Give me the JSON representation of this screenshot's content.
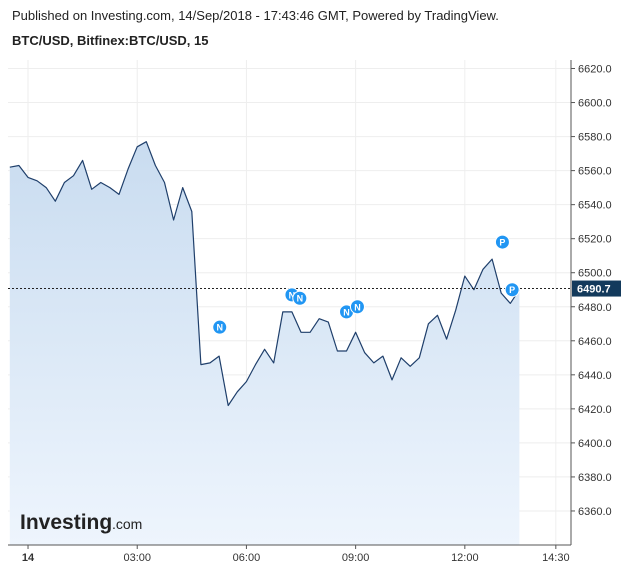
{
  "header": {
    "published": "Published on Investing.com, 14/Sep/2018 - 17:43:46 GMT, Powered by TradingView.",
    "symbol": "BTC/USD, Bitfinex:BTC/USD, 15"
  },
  "logo": {
    "main": "Investing",
    "suffix": ".com"
  },
  "colors": {
    "line": "#1f3f6b",
    "area_top": "#c9dcf0",
    "area_bottom": "#eef5fd",
    "current_badge": "#133a5c",
    "marker": "#2196f3",
    "grid": "#eeeeee"
  },
  "chart_data": {
    "type": "area",
    "title": "",
    "xlabel": "",
    "ylabel": "",
    "ylim": [
      6340,
      6625
    ],
    "y_ticks": [
      6360.0,
      6380.0,
      6400.0,
      6420.0,
      6440.0,
      6460.0,
      6480.0,
      6500.0,
      6520.0,
      6540.0,
      6560.0,
      6580.0,
      6600.0,
      6620.0
    ],
    "y_tick_labels": [
      "6360.0",
      "6380.0",
      "6400.0",
      "6420.0",
      "6440.0",
      "6460.0",
      "6480.0",
      "6500.0",
      "6520.0",
      "6540.0",
      "6560.0",
      "6580.0",
      "6600.0",
      "6620.0"
    ],
    "x_ticks": [
      {
        "t": 0,
        "label": "14"
      },
      {
        "t": 180,
        "label": "03:00"
      },
      {
        "t": 360,
        "label": "06:00"
      },
      {
        "t": 540,
        "label": "09:00"
      },
      {
        "t": 720,
        "label": "12:00"
      },
      {
        "t": 870,
        "label": "14:30"
      }
    ],
    "x_unit": "minutes since 00:00 on 14/Sep/2018",
    "xlim": [
      -33,
      895
    ],
    "grid": true,
    "current_price": 6490.7,
    "current_price_label": "6490.7",
    "series": [
      {
        "values": [
          [
            -30,
            6562
          ],
          [
            -15,
            6563
          ],
          [
            0,
            6556
          ],
          [
            15,
            6554
          ],
          [
            30,
            6550
          ],
          [
            45,
            6542
          ],
          [
            60,
            6553
          ],
          [
            75,
            6557
          ],
          [
            90,
            6566
          ],
          [
            105,
            6549
          ],
          [
            120,
            6553
          ],
          [
            135,
            6550
          ],
          [
            150,
            6546
          ],
          [
            165,
            6561
          ],
          [
            180,
            6574
          ],
          [
            195,
            6577
          ],
          [
            210,
            6563
          ],
          [
            225,
            6553
          ],
          [
            240,
            6531
          ],
          [
            255,
            6550
          ],
          [
            270,
            6536
          ],
          [
            285,
            6446
          ],
          [
            300,
            6447
          ],
          [
            315,
            6451
          ],
          [
            330,
            6422
          ],
          [
            345,
            6430
          ],
          [
            360,
            6436
          ],
          [
            375,
            6446
          ],
          [
            390,
            6455
          ],
          [
            405,
            6447
          ],
          [
            420,
            6477
          ],
          [
            435,
            6477
          ],
          [
            450,
            6465
          ],
          [
            465,
            6465
          ],
          [
            480,
            6473
          ],
          [
            495,
            6471
          ],
          [
            510,
            6454
          ],
          [
            525,
            6454
          ],
          [
            540,
            6465
          ],
          [
            555,
            6453
          ],
          [
            570,
            6447
          ],
          [
            585,
            6451
          ],
          [
            600,
            6437
          ],
          [
            615,
            6450
          ],
          [
            630,
            6445
          ],
          [
            645,
            6450
          ],
          [
            660,
            6470
          ],
          [
            675,
            6475
          ],
          [
            690,
            6461
          ],
          [
            705,
            6478
          ],
          [
            720,
            6498
          ],
          [
            735,
            6490
          ],
          [
            750,
            6502
          ],
          [
            765,
            6508
          ],
          [
            780,
            6488
          ],
          [
            795,
            6482
          ],
          [
            810,
            6490
          ]
        ]
      }
    ],
    "markers": [
      {
        "label": "N",
        "t": 316,
        "y": 6468
      },
      {
        "label": "N",
        "t": 435,
        "y": 6487
      },
      {
        "label": "N",
        "t": 448,
        "y": 6485
      },
      {
        "label": "N",
        "t": 525,
        "y": 6477
      },
      {
        "label": "N",
        "t": 543,
        "y": 6480
      },
      {
        "label": "P",
        "t": 782,
        "y": 6518
      },
      {
        "label": "P",
        "t": 798,
        "y": 6490
      }
    ]
  }
}
